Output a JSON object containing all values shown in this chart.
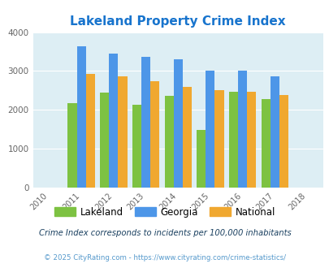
{
  "title": "Lakeland Property Crime Index",
  "years": [
    2010,
    2011,
    2012,
    2013,
    2014,
    2015,
    2016,
    2017,
    2018
  ],
  "bar_years": [
    2011,
    2012,
    2013,
    2014,
    2015,
    2016,
    2017
  ],
  "lakeland": [
    2180,
    2450,
    2130,
    2360,
    1480,
    2470,
    2270
  ],
  "georgia": [
    3630,
    3440,
    3360,
    3310,
    3010,
    3010,
    2870
  ],
  "national": [
    2920,
    2860,
    2730,
    2600,
    2510,
    2460,
    2380
  ],
  "lakeland_color": "#7dc242",
  "georgia_color": "#4d96e8",
  "national_color": "#f0a830",
  "bg_color": "#ddeef4",
  "title_color": "#1874cd",
  "footnote1_color": "#1a4060",
  "footnote2_color": "#5599cc",
  "ylim": [
    0,
    4000
  ],
  "yticks": [
    0,
    1000,
    2000,
    3000,
    4000
  ],
  "footnote1": "Crime Index corresponds to incidents per 100,000 inhabitants",
  "footnote2": "© 2025 CityRating.com - https://www.cityrating.com/crime-statistics/",
  "legend_labels": [
    "Lakeland",
    "Georgia",
    "National"
  ],
  "bar_width": 0.28
}
